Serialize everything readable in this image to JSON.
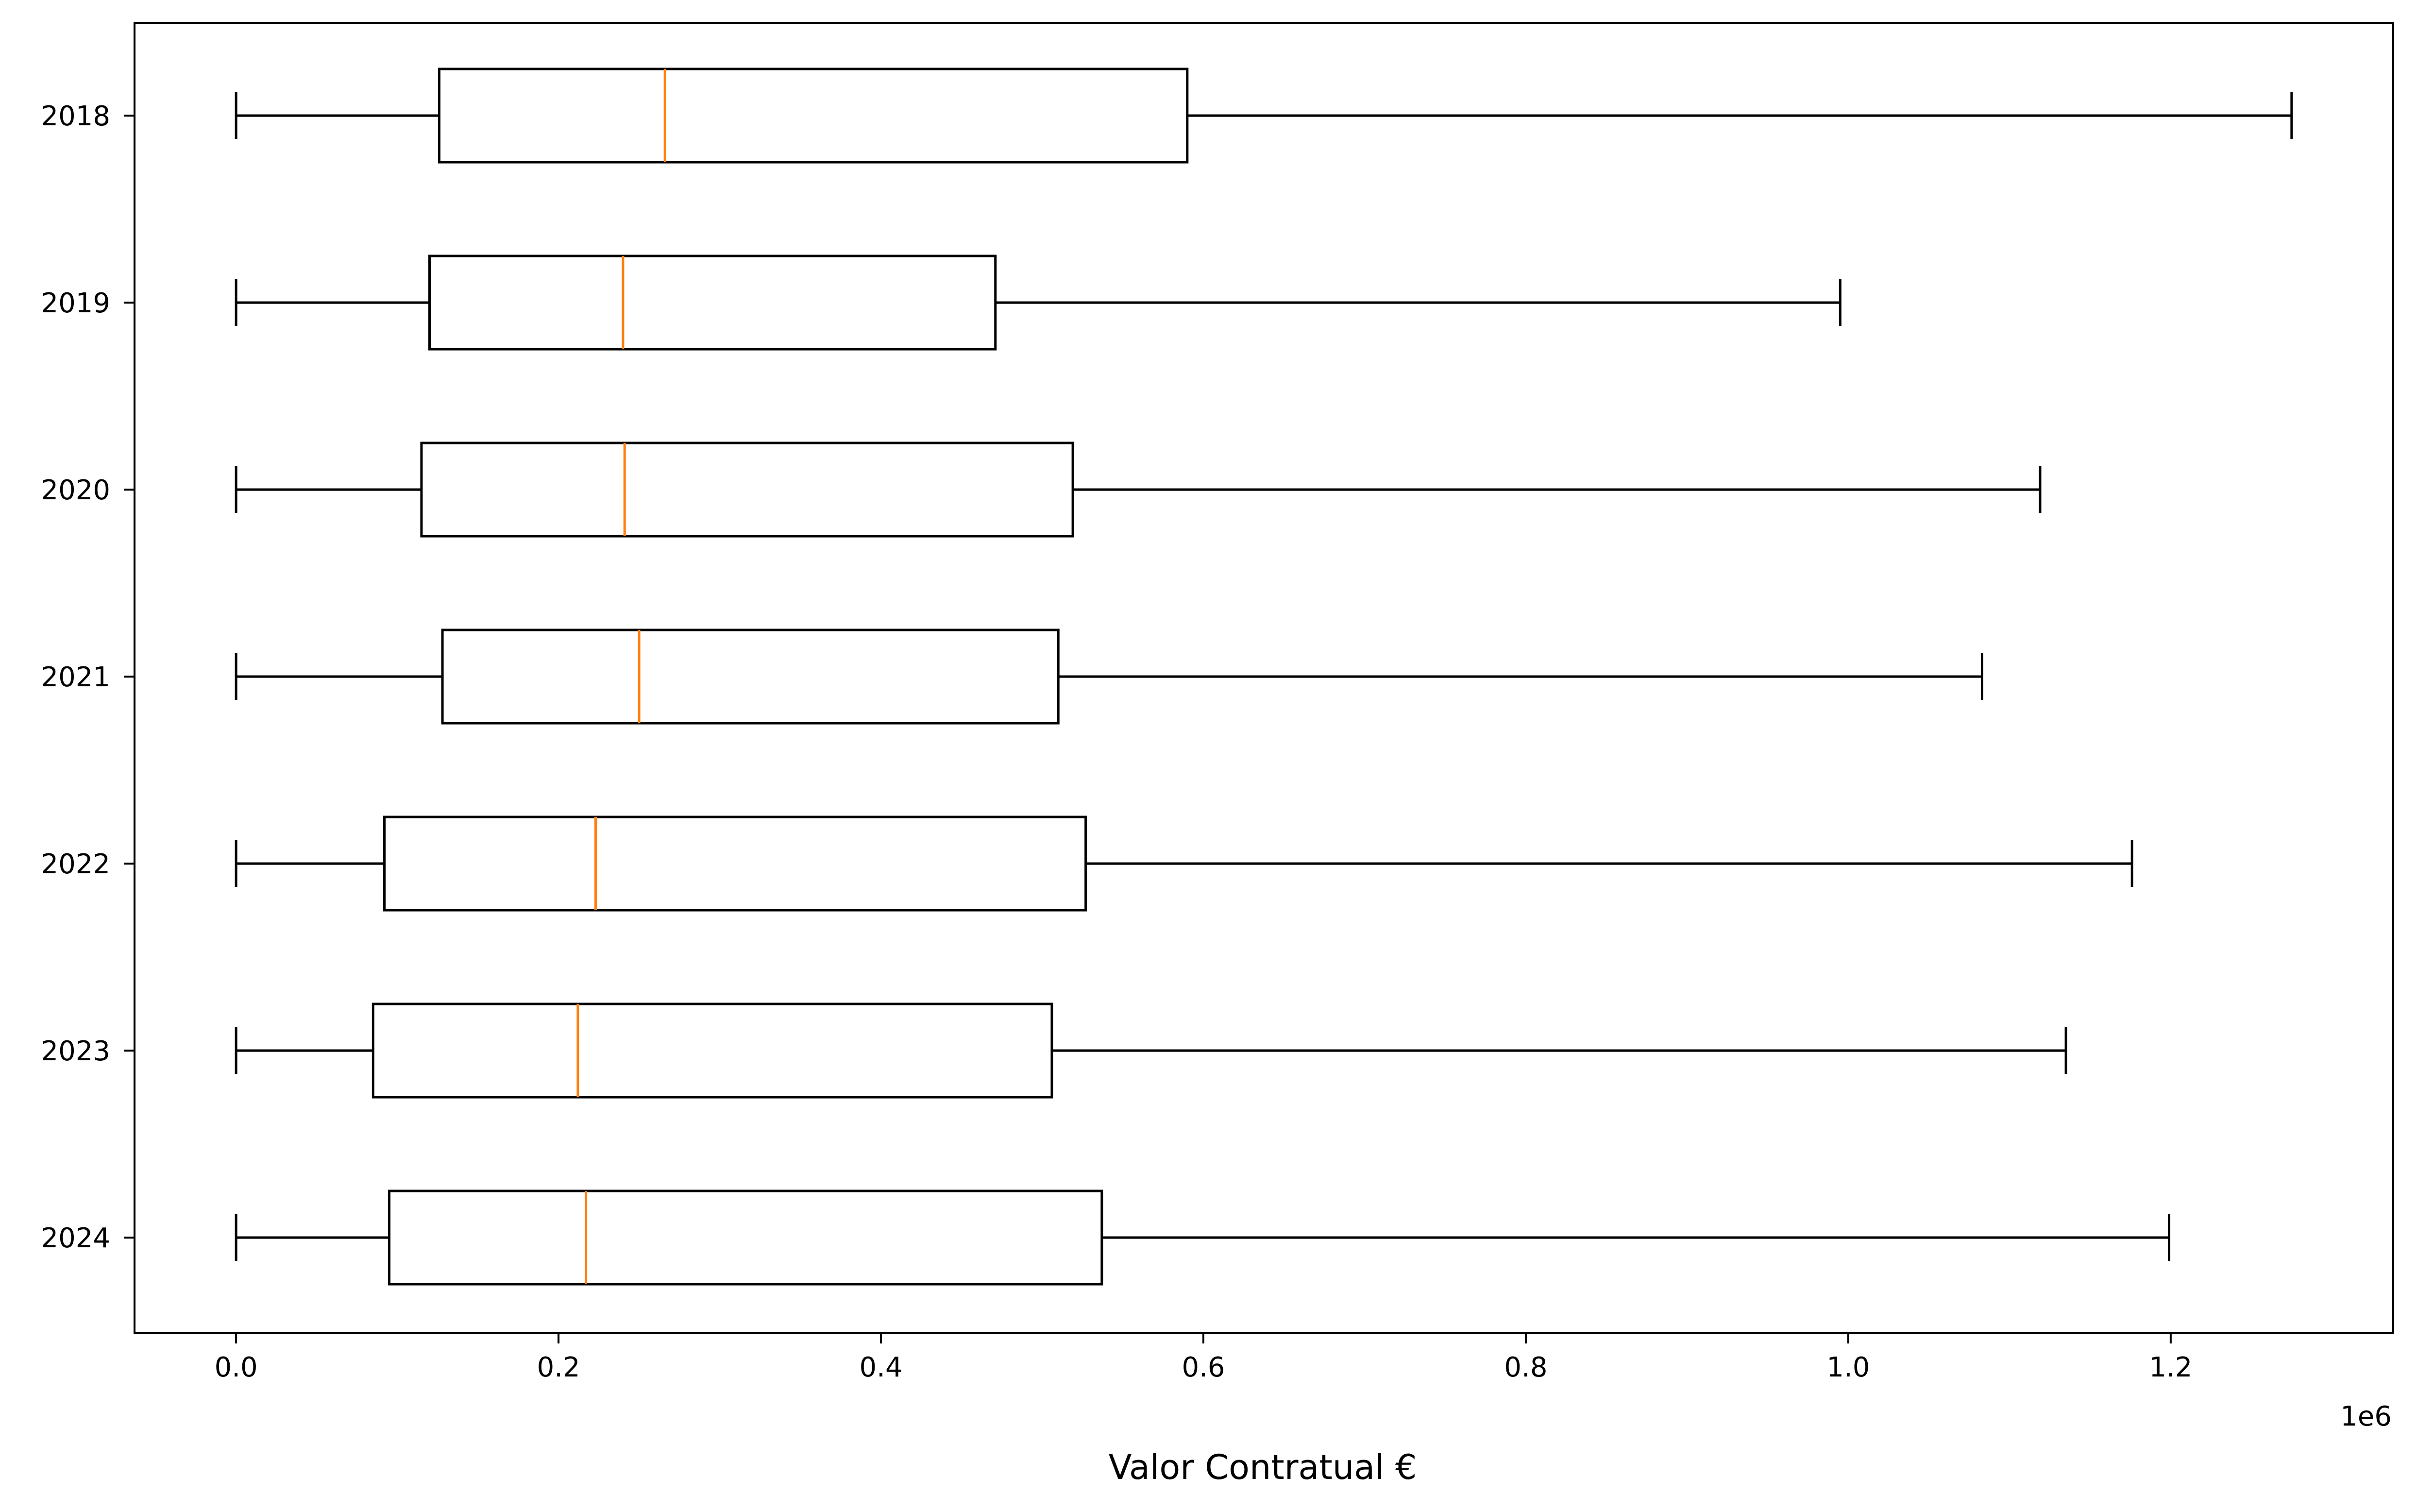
{
  "chart_data": {
    "type": "boxplot",
    "orientation": "horizontal",
    "title": "",
    "xlabel": "Valor Contratual €",
    "ylabel": "",
    "x_offset_label": "1e6",
    "xlim": [
      -0.063,
      1.338
    ],
    "x_ticks": [
      0.0,
      0.2,
      0.4,
      0.6,
      0.8,
      1.0,
      1.2
    ],
    "x_tick_labels": [
      "0.0",
      "0.2",
      "0.4",
      "0.6",
      "0.8",
      "1.0",
      "1.2"
    ],
    "grid": false,
    "colors": {
      "box": "#000000",
      "median": "#ff7f0e"
    },
    "categories": [
      "2018",
      "2019",
      "2020",
      "2021",
      "2022",
      "2023",
      "2024"
    ],
    "boxes": [
      {
        "label": "2018",
        "whisker_low": 0.0,
        "q1": 0.126,
        "median": 0.266,
        "q3": 0.59,
        "whisker_high": 1.275
      },
      {
        "label": "2019",
        "whisker_low": 0.0,
        "q1": 0.12,
        "median": 0.24,
        "q3": 0.471,
        "whisker_high": 0.995
      },
      {
        "label": "2020",
        "whisker_low": 0.0,
        "q1": 0.115,
        "median": 0.241,
        "q3": 0.519,
        "whisker_high": 1.119
      },
      {
        "label": "2021",
        "whisker_low": 0.0,
        "q1": 0.128,
        "median": 0.25,
        "q3": 0.51,
        "whisker_high": 1.083
      },
      {
        "label": "2022",
        "whisker_low": 0.0,
        "q1": 0.092,
        "median": 0.223,
        "q3": 0.527,
        "whisker_high": 1.176
      },
      {
        "label": "2023",
        "whisker_low": 0.0,
        "q1": 0.085,
        "median": 0.212,
        "q3": 0.506,
        "whisker_high": 1.135
      },
      {
        "label": "2024",
        "whisker_low": 0.0,
        "q1": 0.095,
        "median": 0.217,
        "q3": 0.537,
        "whisker_high": 1.199
      }
    ]
  }
}
